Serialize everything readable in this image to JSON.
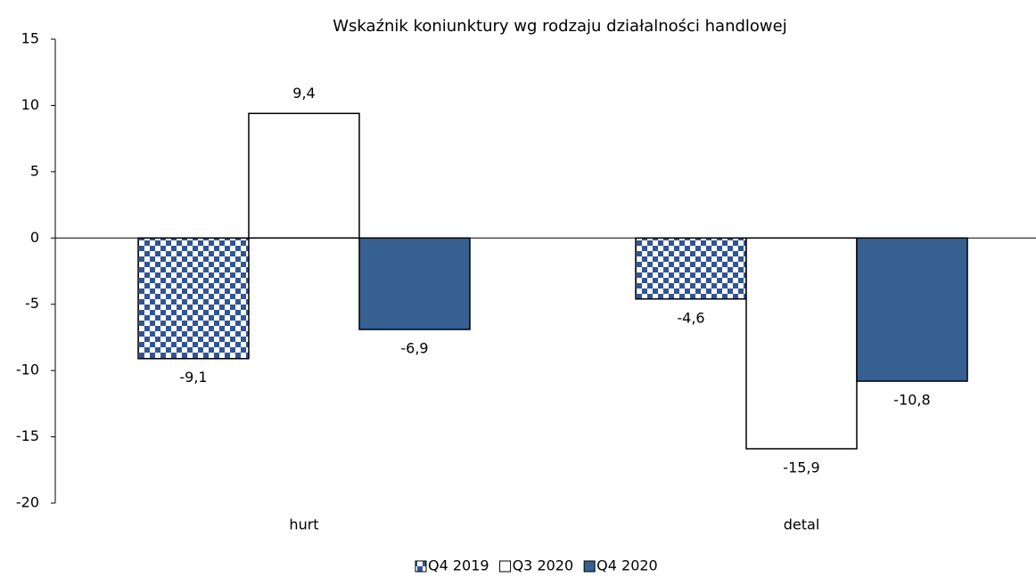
{
  "chart_data": {
    "type": "bar",
    "title": "Wskaźnik koniunktury wg rodzaju działalności handlowej",
    "categories": [
      "hurt",
      "detal"
    ],
    "series": [
      {
        "name": "Q4 2019",
        "color": "#2f5597",
        "pattern": "checker",
        "values": [
          -9.1,
          -4.6
        ],
        "value_labels": [
          "-9,1",
          "-4,6"
        ]
      },
      {
        "name": "Q3 2020",
        "color": "#ffffff",
        "values": [
          9.4,
          -15.9
        ],
        "value_labels": [
          "9,4",
          "-15,9"
        ]
      },
      {
        "name": "Q4 2020",
        "color": "#376092",
        "values": [
          -6.9,
          -10.8
        ],
        "value_labels": [
          "-6,9",
          "-10,8"
        ]
      }
    ],
    "ylim": [
      -20,
      15
    ],
    "yticks": [
      -20,
      -15,
      -10,
      -5,
      0,
      5,
      10,
      15
    ],
    "legend": "bottom"
  }
}
